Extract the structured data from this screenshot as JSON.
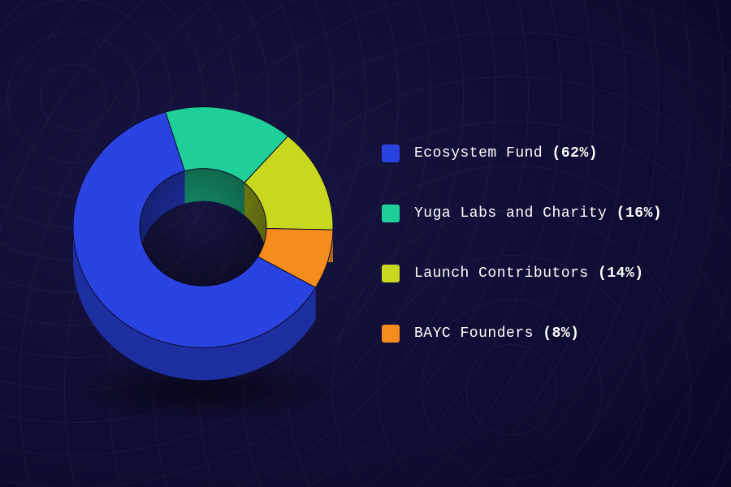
{
  "chart": {
    "type": "donut-3d",
    "background_gradient": [
      "#171542",
      "#0f0d33",
      "#0a0827"
    ],
    "text_color": "#ffffff",
    "font_family": "Courier New",
    "label_fontsize": 18,
    "outer_radius": 160,
    "inner_radius": 78,
    "depth": 40,
    "tilt_deg": 22,
    "start_angle_deg": 30,
    "slices": [
      {
        "label": "Ecosystem Fund",
        "percent": 62,
        "color": "#2a43e0",
        "side_color": "#1c2ea0"
      },
      {
        "label": "Yuga Labs and Charity",
        "percent": 16,
        "color": "#1fcf9a",
        "side_color": "#149069"
      },
      {
        "label": "Launch Contributors",
        "percent": 14,
        "color": "#c7d81f",
        "side_color": "#8e9a15"
      },
      {
        "label": "BAYC Founders",
        "percent": 8,
        "color": "#f78c1e",
        "side_color": "#b56213"
      }
    ]
  }
}
